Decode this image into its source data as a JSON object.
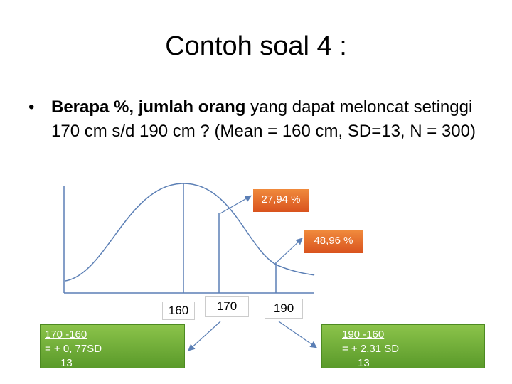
{
  "slide": {
    "title": "Contoh soal 4 :",
    "bullet_symbol": "•",
    "bullet_bold": "Berapa %,  jumlah orang",
    "bullet_rest": " yang dapat meloncat setinggi 170 cm s/d 190 cm ? (Mean = 160 cm, SD=13, N = 300)"
  },
  "diagram": {
    "callout_1": "27,94 %",
    "callout_2": "48,96 %",
    "label_mean": "160",
    "label_170": "170",
    "label_190": "190",
    "left_formula_top": "170 -160",
    "left_formula_result": "  = + 0, 77SD",
    "left_formula_bottom": "13",
    "right_formula_top": "190 -160",
    "right_formula_result": "  = + 2,31 SD",
    "right_formula_bottom": "13",
    "colors": {
      "orange_callout": "#e0642a",
      "green_box": "#6fac35",
      "curve": "#5b7fb5"
    }
  }
}
